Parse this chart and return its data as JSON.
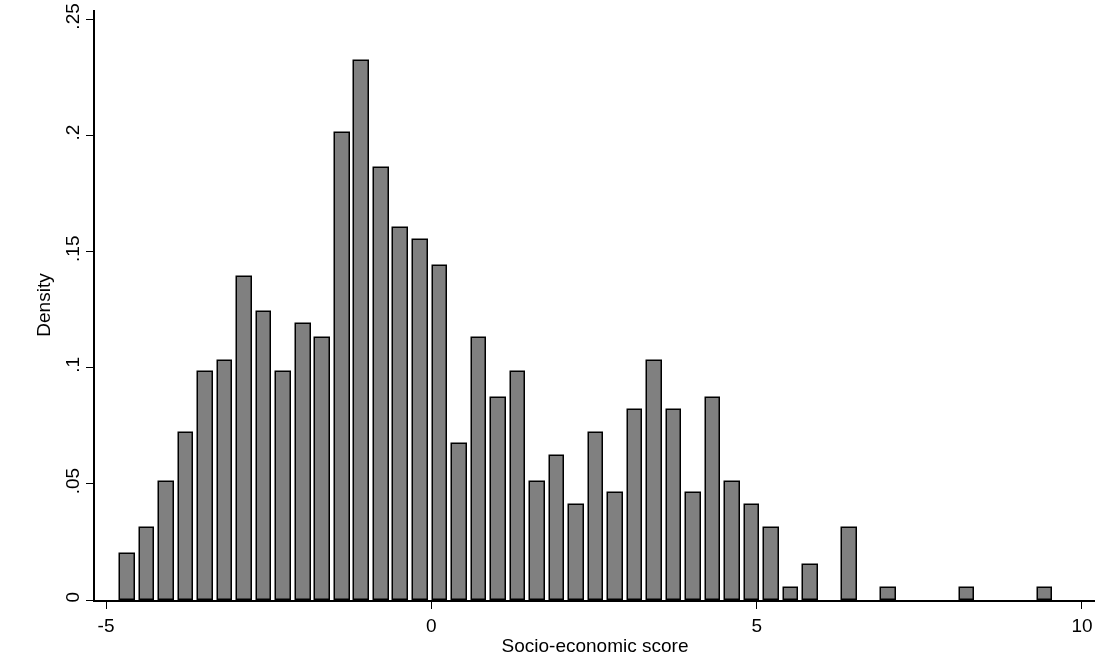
{
  "chart_data": {
    "type": "histogram",
    "xlabel": "Socio-economic score",
    "ylabel": "Density",
    "color": "#808080",
    "bins": [
      -4.82,
      -4.52,
      -4.22,
      -3.92,
      -3.62,
      -3.32,
      -3.02,
      -2.72,
      -2.42,
      -2.12,
      -1.82,
      -1.52,
      -1.22,
      -0.92,
      -0.62,
      -0.32,
      -0.02,
      0.28,
      0.58,
      0.88,
      1.18,
      1.48,
      1.78,
      2.08,
      2.38,
      2.68,
      2.98,
      3.28,
      3.58,
      3.88,
      4.18,
      4.48,
      4.78,
      5.08,
      5.38,
      5.68,
      5.98,
      6.28,
      6.58,
      6.88,
      7.18,
      7.48,
      7.78,
      8.08,
      8.38,
      8.68,
      8.98,
      9.28,
      9.58
    ],
    "values": [
      0.02,
      0.031,
      0.051,
      0.072,
      0.098,
      0.103,
      0.139,
      0.124,
      0.098,
      0.119,
      0.113,
      0.201,
      0.232,
      0.186,
      0.16,
      0.155,
      0.144,
      0.067,
      0.113,
      0.087,
      0.098,
      0.051,
      0.062,
      0.041,
      0.072,
      0.046,
      0.082,
      0.103,
      0.082,
      0.046,
      0.087,
      0.051,
      0.041,
      0.031,
      0.005,
      0.015,
      0,
      0.031,
      0,
      0.005,
      0,
      0,
      0,
      0.005,
      0,
      0,
      0,
      0.005
    ],
    "xlim": [
      -5.17,
      10.2
    ],
    "ylim": [
      0,
      0.254
    ],
    "xticks": [
      -5,
      0,
      5,
      10
    ],
    "yticks": [
      0,
      {
        "value": 0.05,
        "label": ".05"
      },
      {
        "value": 0.1,
        "label": ".1"
      },
      {
        "value": 0.15,
        "label": ".15"
      },
      {
        "value": 0.2,
        "label": ".2"
      },
      {
        "value": 0.25,
        "label": ".25"
      }
    ],
    "grid": false
  }
}
